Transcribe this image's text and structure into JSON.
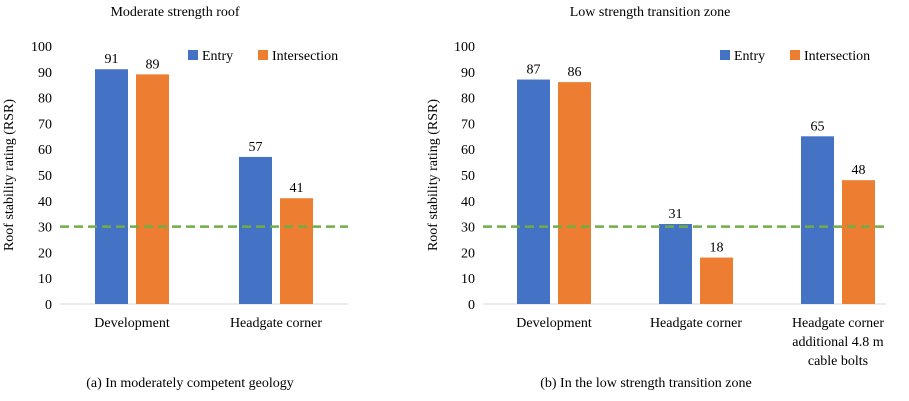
{
  "colors": {
    "entry": "#4472C4",
    "intersection": "#ED7D31",
    "threshold": "#70AD47",
    "axis": "#D9D9D9"
  },
  "chart_data": [
    {
      "type": "bar",
      "title": "Moderate strength roof",
      "caption": "(a) In moderately competent geology",
      "ylabel": "Roof stability rating (RSR)",
      "ylim": [
        0,
        100
      ],
      "yticks": [
        "0",
        "10",
        "20",
        "30",
        "40",
        "50",
        "60",
        "70",
        "80",
        "90",
        "100"
      ],
      "categories": [
        [
          "Development"
        ],
        [
          "Headgate corner"
        ]
      ],
      "series": [
        {
          "name": "Entry",
          "values": [
            91,
            57
          ]
        },
        {
          "name": "Intersection",
          "values": [
            89,
            41
          ]
        }
      ],
      "threshold": 30,
      "legend": "top-right"
    },
    {
      "type": "bar",
      "title": "Low strength transition zone",
      "caption": "(b) In the low strength transition zone",
      "ylabel": "Roof stability rating (RSR)",
      "ylim": [
        0,
        100
      ],
      "yticks": [
        "0",
        "10",
        "20",
        "30",
        "40",
        "50",
        "60",
        "70",
        "80",
        "90",
        "100"
      ],
      "categories": [
        [
          "Development"
        ],
        [
          "Headgate corner"
        ],
        [
          "Headgate corner",
          "additional 4.8 m",
          "cable bolts"
        ]
      ],
      "series": [
        {
          "name": "Entry",
          "values": [
            87,
            31,
            65
          ]
        },
        {
          "name": "Intersection",
          "values": [
            86,
            18,
            48
          ]
        }
      ],
      "threshold": 30,
      "legend": "top-right"
    }
  ]
}
